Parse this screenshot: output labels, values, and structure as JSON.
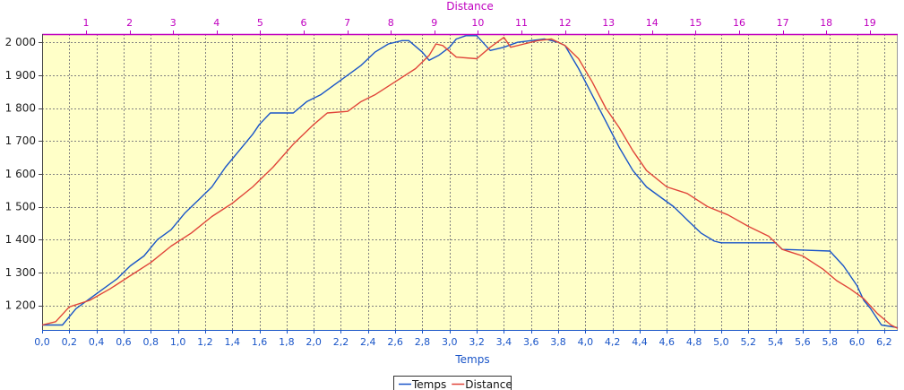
{
  "chart_data": {
    "type": "line",
    "x_bottom_label": "Temps",
    "x_top_label": "Distance",
    "x_bottom_ticks": [
      "0,0",
      "0,2",
      "0,4",
      "0,6",
      "0,8",
      "1,0",
      "1,2",
      "1,4",
      "1,6",
      "1,8",
      "2,0",
      "2,2",
      "2,4",
      "2,6",
      "2,8",
      "3,0",
      "3,2",
      "3,4",
      "3,6",
      "3,8",
      "4,0",
      "4,2",
      "4,4",
      "4,6",
      "4,8",
      "5,0",
      "5,2",
      "5,4",
      "5,6",
      "5,8",
      "6,0",
      "6,2"
    ],
    "x_top_ticks": [
      "1",
      "2",
      "3",
      "4",
      "5",
      "6",
      "7",
      "8",
      "9",
      "10",
      "11",
      "12",
      "13",
      "14",
      "15",
      "16",
      "17",
      "18",
      "19"
    ],
    "y_ticks": [
      "1 200",
      "1 300",
      "1 400",
      "1 500",
      "1 600",
      "1 700",
      "1 800",
      "1 900",
      "2 000"
    ],
    "xlim": [
      0,
      6.3
    ],
    "ylim": [
      1125,
      2025
    ],
    "grid": true,
    "legend_position": "bottom-center",
    "colors": {
      "plot_bg": "#ffffc8",
      "temps": "#1a55c8",
      "distance": "#e0453a",
      "top_axis": "#c000c0",
      "grid": "#808080"
    },
    "series": [
      {
        "name": "Temps",
        "points": [
          [
            0.0,
            1140
          ],
          [
            0.15,
            1140
          ],
          [
            0.25,
            1190
          ],
          [
            0.35,
            1220
          ],
          [
            0.45,
            1250
          ],
          [
            0.55,
            1280
          ],
          [
            0.65,
            1320
          ],
          [
            0.75,
            1350
          ],
          [
            0.85,
            1400
          ],
          [
            0.95,
            1430
          ],
          [
            1.05,
            1480
          ],
          [
            1.15,
            1520
          ],
          [
            1.25,
            1560
          ],
          [
            1.35,
            1620
          ],
          [
            1.45,
            1670
          ],
          [
            1.55,
            1720
          ],
          [
            1.6,
            1750
          ],
          [
            1.68,
            1785
          ],
          [
            1.85,
            1785
          ],
          [
            1.95,
            1820
          ],
          [
            2.05,
            1840
          ],
          [
            2.15,
            1870
          ],
          [
            2.25,
            1900
          ],
          [
            2.35,
            1930
          ],
          [
            2.45,
            1970
          ],
          [
            2.55,
            1995
          ],
          [
            2.65,
            2005
          ],
          [
            2.7,
            2005
          ],
          [
            2.8,
            1970
          ],
          [
            2.85,
            1945
          ],
          [
            2.92,
            1960
          ],
          [
            3.0,
            1985
          ],
          [
            3.05,
            2010
          ],
          [
            3.12,
            2020
          ],
          [
            3.2,
            2020
          ],
          [
            3.3,
            1975
          ],
          [
            3.4,
            1985
          ],
          [
            3.5,
            2000
          ],
          [
            3.6,
            2005
          ],
          [
            3.7,
            2010
          ],
          [
            3.75,
            2005
          ],
          [
            3.8,
            2000
          ],
          [
            3.85,
            1990
          ],
          [
            3.95,
            1920
          ],
          [
            4.05,
            1840
          ],
          [
            4.15,
            1760
          ],
          [
            4.25,
            1680
          ],
          [
            4.35,
            1610
          ],
          [
            4.45,
            1560
          ],
          [
            4.55,
            1530
          ],
          [
            4.65,
            1500
          ],
          [
            4.75,
            1460
          ],
          [
            4.85,
            1420
          ],
          [
            4.95,
            1395
          ],
          [
            5.0,
            1390
          ],
          [
            5.4,
            1390
          ],
          [
            5.45,
            1370
          ],
          [
            5.6,
            1368
          ],
          [
            5.8,
            1365
          ],
          [
            5.9,
            1320
          ],
          [
            6.0,
            1260
          ],
          [
            6.05,
            1215
          ],
          [
            6.1,
            1190
          ],
          [
            6.18,
            1140
          ],
          [
            6.3,
            1132
          ]
        ]
      },
      {
        "name": "Distance",
        "points": [
          [
            0.0,
            1140
          ],
          [
            0.1,
            1150
          ],
          [
            0.2,
            1195
          ],
          [
            0.35,
            1215
          ],
          [
            0.5,
            1250
          ],
          [
            0.65,
            1290
          ],
          [
            0.8,
            1330
          ],
          [
            0.95,
            1380
          ],
          [
            1.1,
            1420
          ],
          [
            1.25,
            1470
          ],
          [
            1.4,
            1510
          ],
          [
            1.55,
            1560
          ],
          [
            1.7,
            1620
          ],
          [
            1.85,
            1690
          ],
          [
            2.0,
            1750
          ],
          [
            2.1,
            1785
          ],
          [
            2.25,
            1790
          ],
          [
            2.35,
            1820
          ],
          [
            2.45,
            1840
          ],
          [
            2.6,
            1880
          ],
          [
            2.75,
            1920
          ],
          [
            2.85,
            1960
          ],
          [
            2.9,
            1995
          ],
          [
            2.95,
            1990
          ],
          [
            3.05,
            1955
          ],
          [
            3.2,
            1950
          ],
          [
            3.3,
            1985
          ],
          [
            3.4,
            2015
          ],
          [
            3.45,
            1985
          ],
          [
            3.55,
            1995
          ],
          [
            3.65,
            2005
          ],
          [
            3.75,
            2010
          ],
          [
            3.85,
            1990
          ],
          [
            3.95,
            1950
          ],
          [
            4.05,
            1880
          ],
          [
            4.15,
            1800
          ],
          [
            4.25,
            1740
          ],
          [
            4.35,
            1670
          ],
          [
            4.45,
            1610
          ],
          [
            4.6,
            1560
          ],
          [
            4.75,
            1540
          ],
          [
            4.9,
            1500
          ],
          [
            5.05,
            1475
          ],
          [
            5.2,
            1440
          ],
          [
            5.35,
            1410
          ],
          [
            5.45,
            1370
          ],
          [
            5.6,
            1350
          ],
          [
            5.75,
            1310
          ],
          [
            5.85,
            1275
          ],
          [
            5.95,
            1250
          ],
          [
            6.05,
            1220
          ],
          [
            6.15,
            1175
          ],
          [
            6.25,
            1140
          ],
          [
            6.3,
            1130
          ]
        ]
      }
    ]
  }
}
